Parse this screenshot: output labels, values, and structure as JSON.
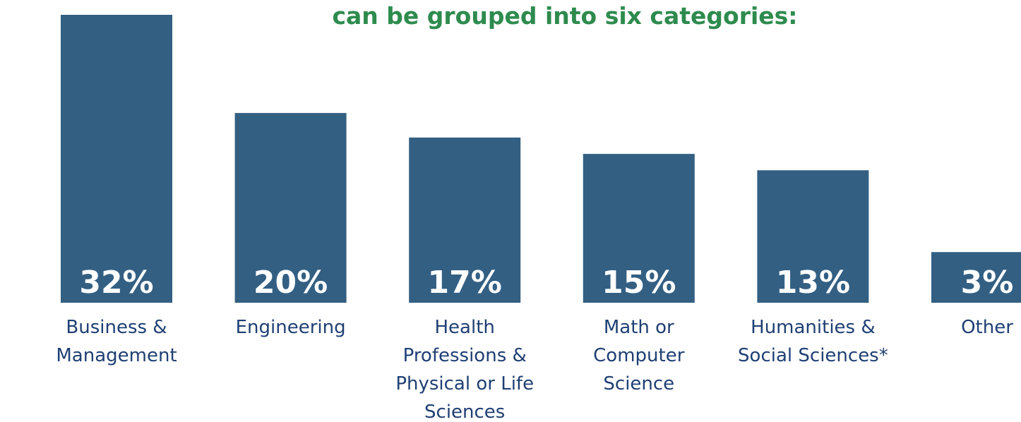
{
  "chart_data": {
    "type": "bar",
    "title": "can be grouped into six categories:",
    "categories": [
      "Business & Management",
      "Engineering",
      "Health Professions & Physical or Life Sciences",
      "Math or Computer Science",
      "Humanities & Social Sciences*",
      "Other"
    ],
    "values": [
      32,
      20,
      17,
      15,
      13,
      3
    ],
    "value_labels": [
      "32%",
      "20%",
      "17%",
      "15%",
      "13%",
      "3%"
    ],
    "color": "#335f83"
  }
}
